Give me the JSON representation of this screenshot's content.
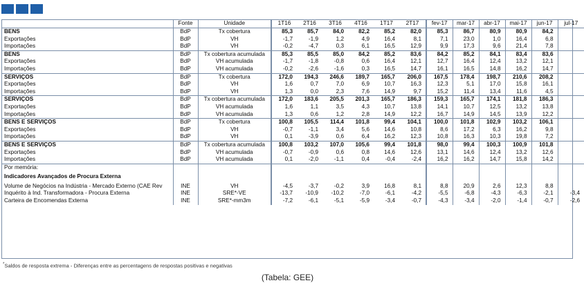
{
  "header": {
    "fonte": "Fonte",
    "unidade": "Unidade",
    "periods": [
      "1T16",
      "2T16",
      "3T16",
      "4T16",
      "1T17",
      "2T17",
      "fev-17",
      "mar-17",
      "abr-17",
      "mai-17",
      "jun-17",
      "jul-17"
    ]
  },
  "rows": [
    {
      "label": "BENS",
      "fonte": "BdP",
      "unidade": "Tx cobertura",
      "values": [
        "85,3",
        "85,7",
        "84,0",
        "82,2",
        "85,2",
        "82,0",
        "85,3",
        "86,7",
        "80,9",
        "80,9",
        "84,2",
        ""
      ],
      "bold": true,
      "start": true
    },
    {
      "label": "Exportações",
      "fonte": "BdP",
      "unidade": "VH",
      "values": [
        "-1,7",
        "-1,9",
        "1,2",
        "4,9",
        "16,4",
        "8,1",
        "7,1",
        "23,0",
        "1,0",
        "16,4",
        "6,8",
        ""
      ]
    },
    {
      "label": "Importações",
      "fonte": "BdP",
      "unidade": "VH",
      "values": [
        "-0,2",
        "-4,7",
        "0,3",
        "6,1",
        "16,5",
        "12,9",
        "9,9",
        "17,3",
        "9,6",
        "21,4",
        "7,8",
        ""
      ]
    },
    {
      "label": "BENS",
      "fonte": "BdP",
      "unidade": "Tx cobertura acumulada",
      "values": [
        "85,3",
        "85,5",
        "85,0",
        "84,2",
        "85,2",
        "83,6",
        "84,2",
        "85,2",
        "84,1",
        "83,4",
        "83,6",
        ""
      ],
      "bold": true,
      "start": true
    },
    {
      "label": "Exportações",
      "fonte": "BdP",
      "unidade": "VH acumulada",
      "values": [
        "-1,7",
        "-1,8",
        "-0,8",
        "0,6",
        "16,4",
        "12,1",
        "12,7",
        "16,4",
        "12,4",
        "13,2",
        "12,1",
        ""
      ]
    },
    {
      "label": "Importações",
      "fonte": "BdP",
      "unidade": "VH acumulada",
      "values": [
        "-0,2",
        "-2,6",
        "-1,6",
        "0,3",
        "16,5",
        "14,7",
        "16,1",
        "16,5",
        "14,8",
        "16,2",
        "14,7",
        ""
      ]
    },
    {
      "label": "SERVIÇOS",
      "fonte": "BdP",
      "unidade": "Tx cobertura",
      "values": [
        "172,0",
        "194,3",
        "246,6",
        "189,7",
        "165,7",
        "206,0",
        "167,5",
        "178,4",
        "198,7",
        "210,6",
        "208,2",
        ""
      ],
      "bold": true,
      "start": true
    },
    {
      "label": "Exportações",
      "fonte": "BdP",
      "unidade": "VH",
      "values": [
        "1,6",
        "0,7",
        "7,0",
        "6,9",
        "10,7",
        "16,3",
        "12,3",
        "5,1",
        "17,0",
        "15,8",
        "16,1",
        ""
      ]
    },
    {
      "label": "Importações",
      "fonte": "BdP",
      "unidade": "VH",
      "values": [
        "1,3",
        "0,0",
        "2,3",
        "7,6",
        "14,9",
        "9,7",
        "15,2",
        "11,4",
        "13,4",
        "11,6",
        "4,5",
        ""
      ]
    },
    {
      "label": "SERVIÇOS",
      "fonte": "BdP",
      "unidade": "Tx cobertura acumulada",
      "values": [
        "172,0",
        "183,6",
        "205,5",
        "201,3",
        "165,7",
        "186,3",
        "159,3",
        "165,7",
        "174,1",
        "181,8",
        "186,3",
        ""
      ],
      "bold": true,
      "start": true
    },
    {
      "label": "Exportações",
      "fonte": "BdP",
      "unidade": "VH acumulada",
      "values": [
        "1,6",
        "1,1",
        "3,5",
        "4,3",
        "10,7",
        "13,8",
        "14,1",
        "10,7",
        "12,5",
        "13,2",
        "13,8",
        ""
      ]
    },
    {
      "label": "Importações",
      "fonte": "BdP",
      "unidade": "VH acumulada",
      "values": [
        "1,3",
        "0,6",
        "1,2",
        "2,8",
        "14,9",
        "12,2",
        "16,7",
        "14,9",
        "14,5",
        "13,9",
        "12,2",
        ""
      ]
    },
    {
      "label": "BENS E SERVIÇOS",
      "fonte": "BdP",
      "unidade": "Tx cobertura",
      "values": [
        "100,8",
        "105,5",
        "114,4",
        "101,8",
        "99,4",
        "104,1",
        "100,0",
        "101,8",
        "102,9",
        "103,2",
        "106,1",
        ""
      ],
      "bold": true,
      "start": true
    },
    {
      "label": "Exportações",
      "fonte": "BdP",
      "unidade": "VH",
      "values": [
        "-0,7",
        "-1,1",
        "3,4",
        "5,6",
        "14,6",
        "10,8",
        "8,6",
        "17,2",
        "6,3",
        "16,2",
        "9,8",
        ""
      ]
    },
    {
      "label": "Importações",
      "fonte": "BdP",
      "unidade": "VH",
      "values": [
        "0,1",
        "-3,9",
        "0,6",
        "6,4",
        "16,2",
        "12,3",
        "10,8",
        "16,3",
        "10,3",
        "19,8",
        "7,2",
        ""
      ]
    },
    {
      "label": "BENS E SERVIÇOS",
      "fonte": "BdP",
      "unidade": "Tx cobertura acumulada",
      "values": [
        "100,8",
        "103,2",
        "107,0",
        "105,6",
        "99,4",
        "101,8",
        "98,0",
        "99,4",
        "100,3",
        "100,9",
        "101,8",
        ""
      ],
      "bold": true,
      "start": true
    },
    {
      "label": "Exportações",
      "fonte": "BdP",
      "unidade": "VH acumulada",
      "values": [
        "-0,7",
        "-0,9",
        "0,6",
        "0,8",
        "14,6",
        "12,6",
        "13,1",
        "14,6",
        "12,4",
        "13,2",
        "12,6",
        ""
      ]
    },
    {
      "label": "Importações",
      "fonte": "BdP",
      "unidade": "VH acumulada",
      "values": [
        "0,1",
        "-2,0",
        "-1,1",
        "0,4",
        "-0,4",
        "-2,4",
        "16,2",
        "16,2",
        "14,7",
        "15,8",
        "14,2",
        ""
      ]
    }
  ],
  "memo": {
    "label": "Por memória:",
    "subtitle": "Indicadores Avançados de Procura Externa",
    "rows": [
      {
        "label": "Volume de Negócios na Indústria - Mercado Externo (CAE Rev",
        "fonte": "INE",
        "unidade": "VH",
        "values": [
          "-4,5",
          "-3,7",
          "-0,2",
          "3,9",
          "16,8",
          "8,1",
          "8,8",
          "20,9",
          "2,6",
          "12,3",
          "8,8",
          ""
        ]
      },
      {
        "label": "Inquérito à Ind. Transformadora - Procura Externa",
        "fonte": "INE",
        "unidade": "SRE*-VE",
        "values": [
          "-13,7",
          "-10,9",
          "-10,2",
          "-7,0",
          "-6,1",
          "-4,2",
          "-5,5",
          "-6,8",
          "-4,3",
          "-6,3",
          "-2,1",
          "-3,4"
        ]
      },
      {
        "label": "Carteira de Encomendas Externa",
        "fonte": "INE",
        "unidade": "SRE*-mm3m",
        "values": [
          "-7,2",
          "-6,1",
          "-5,1",
          "-5,9",
          "-3,4",
          "-0,7",
          "-4,3",
          "-3,4",
          "-2,0",
          "-1,4",
          "-0,7",
          "-2,6"
        ]
      }
    ]
  },
  "footnote": "Saldos de resposta extrema - Diferenças entre as percentagens de respostas positivas e negativas",
  "footnote_marker": "*",
  "caption": "(Tabela: GEE)",
  "colors": {
    "border": "#7a8ea8",
    "logo": "#1f5fa8"
  }
}
